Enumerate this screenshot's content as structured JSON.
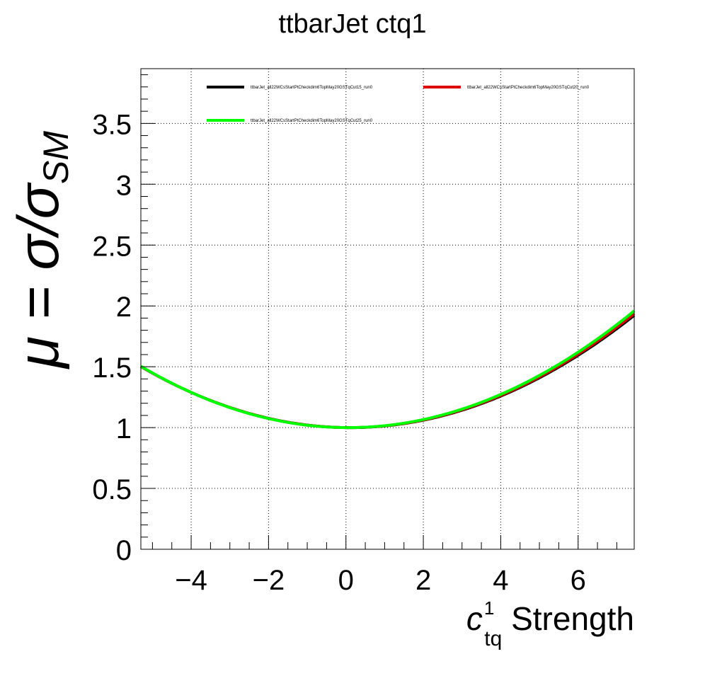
{
  "chart_data": {
    "type": "line",
    "title": "ttbarJet ctq1",
    "xlabel": {
      "main": "c",
      "sup": "1",
      "sub": "tq",
      "rest": " Strength"
    },
    "ylabel": "μ = σ/σ",
    "ylabel_sub": "SM",
    "xlim": [
      -5.3,
      7.45
    ],
    "ylim": [
      0,
      3.95
    ],
    "xticks": [
      -4,
      -2,
      0,
      2,
      4,
      6
    ],
    "xtick_labels": [
      "−4",
      "−2",
      "0",
      "2",
      "4",
      "6"
    ],
    "yticks": [
      0,
      0.5,
      1,
      1.5,
      2,
      2.5,
      3,
      3.5
    ],
    "ytick_labels": [
      "0",
      "0.5",
      "1",
      "1.5",
      "2",
      "2.5",
      "3",
      "3.5"
    ],
    "grid": true,
    "legend_position": "top",
    "series": [
      {
        "name": "ttbarJet_all22WCsStartPtCheckdim6TopMay20GSTqCut15_run0",
        "color": "#000000",
        "coeffs": [
          1.0,
          -0.0038,
          0.01713
        ]
      },
      {
        "name": "ttbarJet_all22WCsStartPtCheckdim6TopMay20GSTqCut20_run0",
        "color": "#dd0000",
        "coeffs": [
          1.0,
          -0.0031,
          0.0173
        ]
      },
      {
        "name": "ttbarJet_all22WCsStartPtCheckdim6TopMay20GSTqCut25_run0",
        "color": "#00ff00",
        "coeffs": [
          1.0,
          -0.002,
          0.01756
        ]
      }
    ]
  }
}
